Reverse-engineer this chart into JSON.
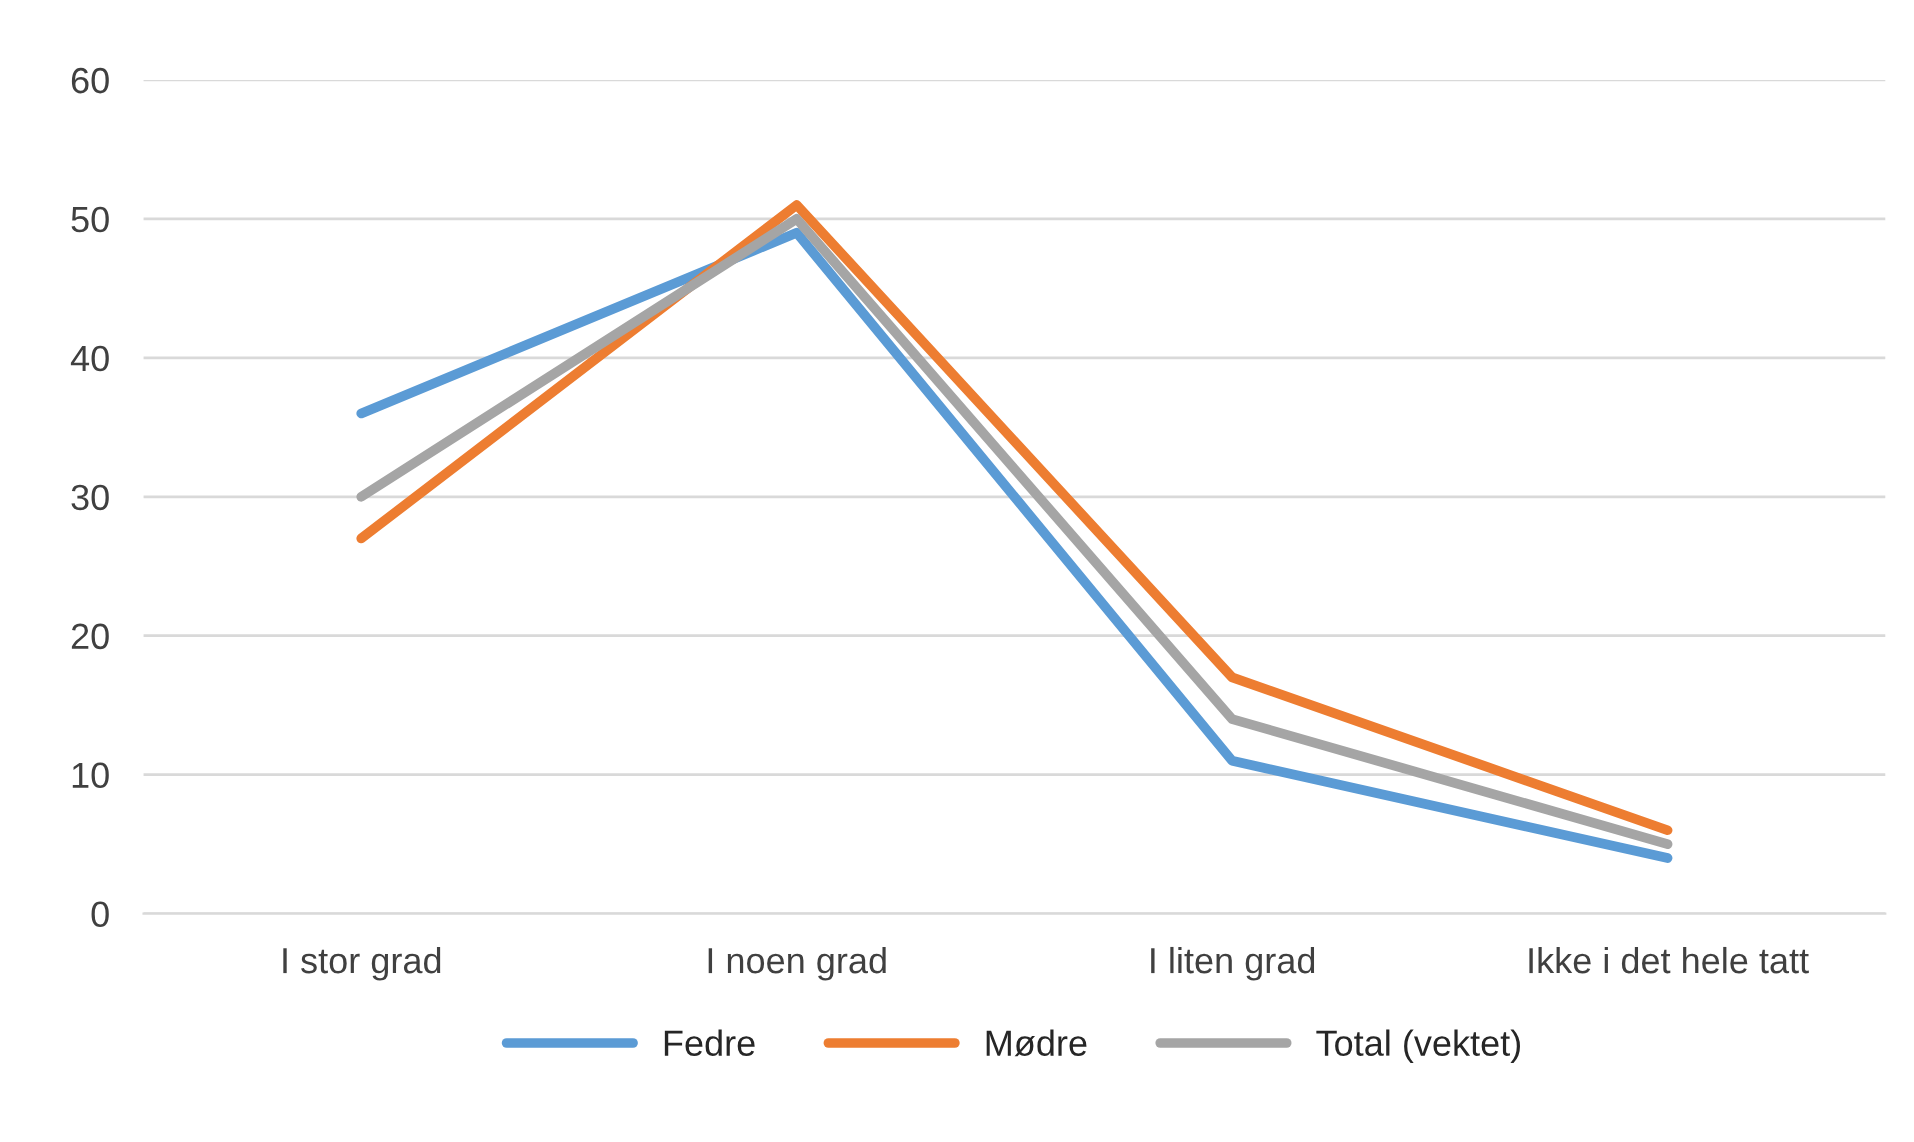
{
  "chart_data": {
    "type": "line",
    "categories": [
      "I stor grad",
      "I noen grad",
      "I liten grad",
      "Ikke i det hele tatt"
    ],
    "series": [
      {
        "name": "Fedre",
        "color": "#5b9bd5",
        "values": [
          36,
          49,
          11,
          4
        ]
      },
      {
        "name": "Mødre",
        "color": "#ed7d31",
        "values": [
          27,
          51,
          17,
          6
        ]
      },
      {
        "name": "Total (vektet)",
        "color": "#a5a5a5",
        "values": [
          30,
          50,
          14,
          5
        ]
      }
    ],
    "ylim": [
      0,
      60
    ],
    "yticks": [
      0,
      10,
      20,
      30,
      40,
      50,
      60
    ],
    "grid": "y",
    "legend": "bottom",
    "marker": "none",
    "line_style": "solid"
  }
}
